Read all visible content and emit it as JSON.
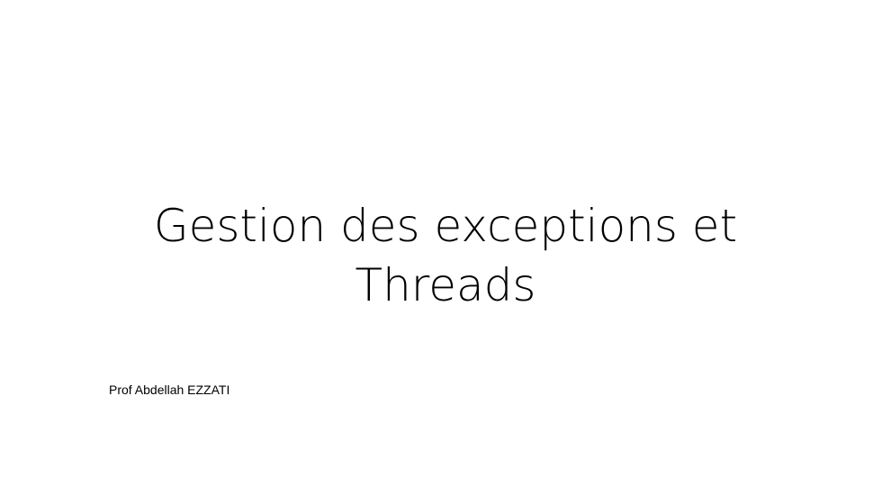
{
  "slide": {
    "title_line1": "Gestion des exceptions et",
    "title_line2": "Threads",
    "author": "Prof Abdellah EZZATI"
  }
}
